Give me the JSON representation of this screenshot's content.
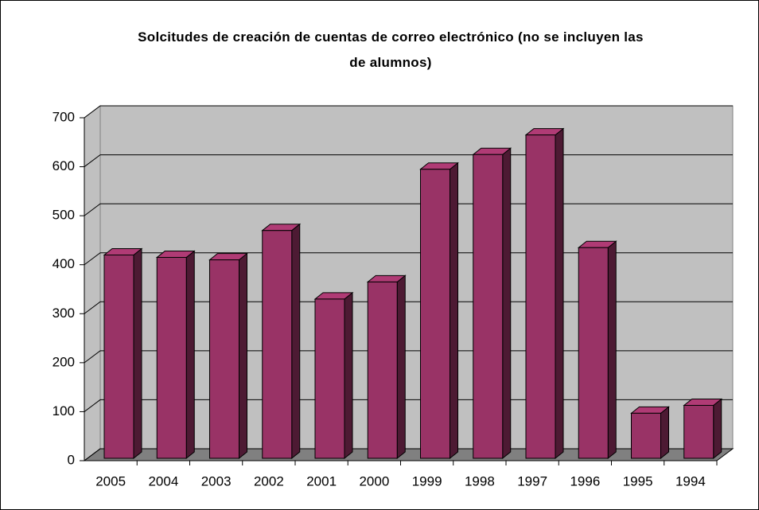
{
  "chart_data": {
    "type": "bar3d",
    "title": "Solcitudes de creación de cuentas de correo electrónico (no se incluyen las de alumnos)",
    "categories": [
      "2005",
      "2004",
      "2003",
      "2002",
      "2001",
      "2000",
      "1999",
      "1998",
      "1997",
      "1996",
      "1995",
      "1994"
    ],
    "values": [
      415,
      410,
      405,
      465,
      325,
      360,
      590,
      620,
      660,
      430,
      92,
      108
    ],
    "color": "#993366",
    "ylim": [
      0,
      700
    ],
    "yticks": [
      0,
      100,
      200,
      300,
      400,
      500,
      600,
      700
    ],
    "grid": true
  }
}
